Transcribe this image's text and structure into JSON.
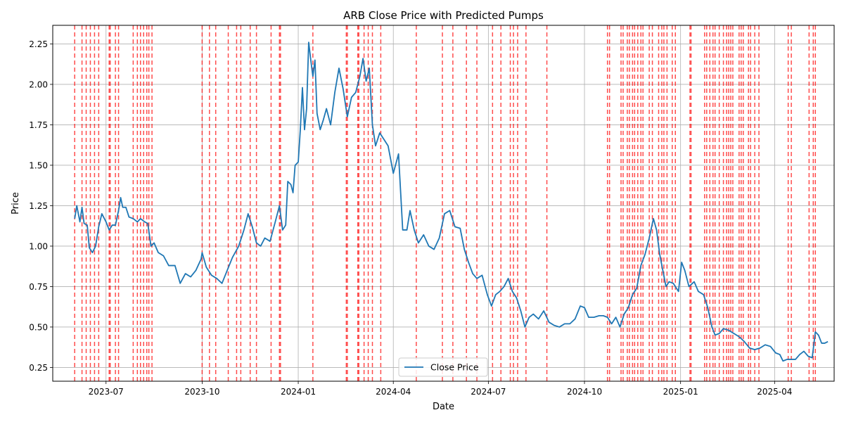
{
  "chart_data": {
    "type": "line",
    "title": "ARB Close Price with Predicted Pumps",
    "xlabel": "Date",
    "ylabel": "Price",
    "xlim": [
      "2023-05-11",
      "2025-05-28"
    ],
    "ylim": [
      0.165,
      2.365
    ],
    "grid": true,
    "legend": "lower center",
    "x_ticks": [
      {
        "date": "2023-07-01",
        "label": "2023-07"
      },
      {
        "date": "2023-10-01",
        "label": "2023-10"
      },
      {
        "date": "2024-01-01",
        "label": "2024-01"
      },
      {
        "date": "2024-04-01",
        "label": "2024-04"
      },
      {
        "date": "2024-07-01",
        "label": "2024-07"
      },
      {
        "date": "2024-10-01",
        "label": "2024-10"
      },
      {
        "date": "2025-01-01",
        "label": "2025-01"
      },
      {
        "date": "2025-04-01",
        "label": "2025-04"
      }
    ],
    "y_ticks": [
      {
        "value": 0.25,
        "label": "0.25"
      },
      {
        "value": 0.5,
        "label": "0.50"
      },
      {
        "value": 0.75,
        "label": "0.75"
      },
      {
        "value": 1.0,
        "label": "1.00"
      },
      {
        "value": 1.25,
        "label": "1.25"
      },
      {
        "value": 1.5,
        "label": "1.50"
      },
      {
        "value": 1.75,
        "label": "1.75"
      },
      {
        "value": 2.0,
        "label": "2.00"
      },
      {
        "value": 2.25,
        "label": "2.25"
      }
    ],
    "series": [
      {
        "name": "Close Price",
        "color": "#1f77b4",
        "points": [
          [
            "2023-06-01",
            1.17
          ],
          [
            "2023-06-03",
            1.25
          ],
          [
            "2023-06-06",
            1.15
          ],
          [
            "2023-06-08",
            1.24
          ],
          [
            "2023-06-10",
            1.14
          ],
          [
            "2023-06-13",
            1.13
          ],
          [
            "2023-06-15",
            0.99
          ],
          [
            "2023-06-18",
            0.96
          ],
          [
            "2023-06-21",
            1.0
          ],
          [
            "2023-06-24",
            1.12
          ],
          [
            "2023-06-27",
            1.2
          ],
          [
            "2023-07-01",
            1.15
          ],
          [
            "2023-07-04",
            1.1
          ],
          [
            "2023-07-07",
            1.13
          ],
          [
            "2023-07-10",
            1.13
          ],
          [
            "2023-07-13",
            1.22
          ],
          [
            "2023-07-15",
            1.3
          ],
          [
            "2023-07-17",
            1.24
          ],
          [
            "2023-07-20",
            1.24
          ],
          [
            "2023-07-23",
            1.18
          ],
          [
            "2023-07-27",
            1.17
          ],
          [
            "2023-07-31",
            1.15
          ],
          [
            "2023-08-03",
            1.17
          ],
          [
            "2023-08-07",
            1.15
          ],
          [
            "2023-08-10",
            1.14
          ],
          [
            "2023-08-13",
            1.0
          ],
          [
            "2023-08-16",
            1.02
          ],
          [
            "2023-08-20",
            0.96
          ],
          [
            "2023-08-25",
            0.94
          ],
          [
            "2023-08-30",
            0.88
          ],
          [
            "2023-09-05",
            0.88
          ],
          [
            "2023-09-10",
            0.77
          ],
          [
            "2023-09-15",
            0.83
          ],
          [
            "2023-09-20",
            0.81
          ],
          [
            "2023-09-25",
            0.85
          ],
          [
            "2023-09-30",
            0.92
          ],
          [
            "2023-10-01",
            0.96
          ],
          [
            "2023-10-05",
            0.87
          ],
          [
            "2023-10-10",
            0.82
          ],
          [
            "2023-10-15",
            0.8
          ],
          [
            "2023-10-20",
            0.77
          ],
          [
            "2023-10-25",
            0.85
          ],
          [
            "2023-10-30",
            0.93
          ],
          [
            "2023-11-05",
            1.0
          ],
          [
            "2023-11-10",
            1.1
          ],
          [
            "2023-11-14",
            1.2
          ],
          [
            "2023-11-18",
            1.12
          ],
          [
            "2023-11-22",
            1.02
          ],
          [
            "2023-11-26",
            1.0
          ],
          [
            "2023-11-30",
            1.05
          ],
          [
            "2023-12-05",
            1.03
          ],
          [
            "2023-12-10",
            1.15
          ],
          [
            "2023-12-14",
            1.25
          ],
          [
            "2023-12-17",
            1.1
          ],
          [
            "2023-12-20",
            1.13
          ],
          [
            "2023-12-22",
            1.4
          ],
          [
            "2023-12-25",
            1.38
          ],
          [
            "2023-12-27",
            1.33
          ],
          [
            "2023-12-29",
            1.5
          ],
          [
            "2024-01-01",
            1.52
          ],
          [
            "2024-01-03",
            1.72
          ],
          [
            "2024-01-05",
            1.98
          ],
          [
            "2024-01-07",
            1.72
          ],
          [
            "2024-01-09",
            1.85
          ],
          [
            "2024-01-11",
            2.26
          ],
          [
            "2024-01-13",
            2.15
          ],
          [
            "2024-01-15",
            2.05
          ],
          [
            "2024-01-17",
            2.15
          ],
          [
            "2024-01-19",
            1.82
          ],
          [
            "2024-01-22",
            1.72
          ],
          [
            "2024-01-25",
            1.78
          ],
          [
            "2024-01-28",
            1.85
          ],
          [
            "2024-02-01",
            1.75
          ],
          [
            "2024-02-05",
            1.95
          ],
          [
            "2024-02-09",
            2.1
          ],
          [
            "2024-02-13",
            1.97
          ],
          [
            "2024-02-17",
            1.8
          ],
          [
            "2024-02-21",
            1.92
          ],
          [
            "2024-02-25",
            1.95
          ],
          [
            "2024-02-29",
            2.05
          ],
          [
            "2024-03-03",
            2.16
          ],
          [
            "2024-03-06",
            2.02
          ],
          [
            "2024-03-09",
            2.1
          ],
          [
            "2024-03-12",
            1.75
          ],
          [
            "2024-03-15",
            1.62
          ],
          [
            "2024-03-19",
            1.7
          ],
          [
            "2024-03-23",
            1.66
          ],
          [
            "2024-03-27",
            1.62
          ],
          [
            "2024-04-01",
            1.45
          ],
          [
            "2024-04-06",
            1.57
          ],
          [
            "2024-04-10",
            1.1
          ],
          [
            "2024-04-14",
            1.1
          ],
          [
            "2024-04-17",
            1.22
          ],
          [
            "2024-04-21",
            1.1
          ],
          [
            "2024-04-25",
            1.02
          ],
          [
            "2024-04-30",
            1.07
          ],
          [
            "2024-05-05",
            1.0
          ],
          [
            "2024-05-10",
            0.98
          ],
          [
            "2024-05-15",
            1.05
          ],
          [
            "2024-05-20",
            1.2
          ],
          [
            "2024-05-25",
            1.22
          ],
          [
            "2024-05-30",
            1.12
          ],
          [
            "2024-06-04",
            1.11
          ],
          [
            "2024-06-08",
            0.98
          ],
          [
            "2024-06-12",
            0.9
          ],
          [
            "2024-06-16",
            0.83
          ],
          [
            "2024-06-20",
            0.8
          ],
          [
            "2024-06-25",
            0.82
          ],
          [
            "2024-06-30",
            0.7
          ],
          [
            "2024-07-04",
            0.63
          ],
          [
            "2024-07-08",
            0.7
          ],
          [
            "2024-07-12",
            0.72
          ],
          [
            "2024-07-16",
            0.75
          ],
          [
            "2024-07-20",
            0.8
          ],
          [
            "2024-07-24",
            0.72
          ],
          [
            "2024-07-28",
            0.68
          ],
          [
            "2024-08-01",
            0.6
          ],
          [
            "2024-08-05",
            0.5
          ],
          [
            "2024-08-09",
            0.56
          ],
          [
            "2024-08-13",
            0.58
          ],
          [
            "2024-08-18",
            0.55
          ],
          [
            "2024-08-23",
            0.6
          ],
          [
            "2024-08-28",
            0.53
          ],
          [
            "2024-09-02",
            0.51
          ],
          [
            "2024-09-07",
            0.5
          ],
          [
            "2024-09-12",
            0.52
          ],
          [
            "2024-09-17",
            0.52
          ],
          [
            "2024-09-22",
            0.55
          ],
          [
            "2024-09-27",
            0.63
          ],
          [
            "2024-10-01",
            0.62
          ],
          [
            "2024-10-05",
            0.56
          ],
          [
            "2024-10-10",
            0.56
          ],
          [
            "2024-10-15",
            0.57
          ],
          [
            "2024-10-19",
            0.57
          ],
          [
            "2024-10-23",
            0.56
          ],
          [
            "2024-10-27",
            0.52
          ],
          [
            "2024-10-31",
            0.56
          ],
          [
            "2024-11-04",
            0.5
          ],
          [
            "2024-11-08",
            0.58
          ],
          [
            "2024-11-12",
            0.62
          ],
          [
            "2024-11-16",
            0.7
          ],
          [
            "2024-11-20",
            0.74
          ],
          [
            "2024-11-24",
            0.88
          ],
          [
            "2024-11-28",
            0.95
          ],
          [
            "2024-12-02",
            1.05
          ],
          [
            "2024-12-06",
            1.17
          ],
          [
            "2024-12-09",
            1.1
          ],
          [
            "2024-12-12",
            0.95
          ],
          [
            "2024-12-15",
            0.85
          ],
          [
            "2024-12-18",
            0.75
          ],
          [
            "2024-12-21",
            0.78
          ],
          [
            "2024-12-25",
            0.77
          ],
          [
            "2024-12-30",
            0.72
          ],
          [
            "2025-01-02",
            0.9
          ],
          [
            "2025-01-05",
            0.85
          ],
          [
            "2025-01-09",
            0.75
          ],
          [
            "2025-01-14",
            0.78
          ],
          [
            "2025-01-18",
            0.72
          ],
          [
            "2025-01-23",
            0.7
          ],
          [
            "2025-01-27",
            0.62
          ],
          [
            "2025-01-31",
            0.5
          ],
          [
            "2025-02-03",
            0.45
          ],
          [
            "2025-02-07",
            0.46
          ],
          [
            "2025-02-11",
            0.49
          ],
          [
            "2025-02-16",
            0.48
          ],
          [
            "2025-02-21",
            0.46
          ],
          [
            "2025-02-26",
            0.44
          ],
          [
            "2025-03-03",
            0.41
          ],
          [
            "2025-03-08",
            0.37
          ],
          [
            "2025-03-13",
            0.36
          ],
          [
            "2025-03-18",
            0.37
          ],
          [
            "2025-03-23",
            0.39
          ],
          [
            "2025-03-28",
            0.38
          ],
          [
            "2025-04-02",
            0.34
          ],
          [
            "2025-04-06",
            0.33
          ],
          [
            "2025-04-09",
            0.29
          ],
          [
            "2025-04-13",
            0.3
          ],
          [
            "2025-04-17",
            0.3
          ],
          [
            "2025-04-21",
            0.3
          ],
          [
            "2025-04-25",
            0.33
          ],
          [
            "2025-04-29",
            0.35
          ],
          [
            "2025-05-03",
            0.32
          ],
          [
            "2025-05-07",
            0.31
          ],
          [
            "2025-05-10",
            0.47
          ],
          [
            "2025-05-13",
            0.45
          ],
          [
            "2025-05-16",
            0.4
          ],
          [
            "2025-05-19",
            0.4
          ],
          [
            "2025-05-22",
            0.41
          ]
        ]
      }
    ],
    "pump_markers": {
      "color": "#ff0000",
      "style": "dashed",
      "dates": [
        "2023-06-01",
        "2023-06-08",
        "2023-06-12",
        "2023-06-16",
        "2023-06-20",
        "2023-06-24",
        "2023-07-04",
        "2023-07-05",
        "2023-07-10",
        "2023-07-13",
        "2023-07-27",
        "2023-07-31",
        "2023-08-03",
        "2023-08-06",
        "2023-08-09",
        "2023-08-11",
        "2023-08-14",
        "2023-10-01",
        "2023-10-08",
        "2023-10-14",
        "2023-10-26",
        "2023-11-03",
        "2023-11-07",
        "2023-11-16",
        "2023-11-22",
        "2023-12-06",
        "2023-12-14",
        "2023-12-15",
        "2024-01-15",
        "2024-02-16",
        "2024-02-17",
        "2024-02-27",
        "2024-02-28",
        "2024-03-04",
        "2024-03-08",
        "2024-03-12",
        "2024-03-20",
        "2024-04-23",
        "2024-05-18",
        "2024-05-28",
        "2024-06-10",
        "2024-06-20",
        "2024-07-05",
        "2024-07-13",
        "2024-07-22",
        "2024-07-25",
        "2024-07-29",
        "2024-08-06",
        "2024-08-26",
        "2024-10-23",
        "2024-10-25",
        "2024-11-05",
        "2024-11-07",
        "2024-11-11",
        "2024-11-13",
        "2024-11-16",
        "2024-11-18",
        "2024-11-21",
        "2024-11-24",
        "2024-11-26",
        "2024-12-02",
        "2024-12-05",
        "2024-12-11",
        "2024-12-14",
        "2024-12-16",
        "2024-12-19",
        "2024-12-24",
        "2024-12-27",
        "2025-01-10",
        "2025-01-11",
        "2025-01-24",
        "2025-01-26",
        "2025-01-29",
        "2025-02-01",
        "2025-02-03",
        "2025-02-07",
        "2025-02-11",
        "2025-02-14",
        "2025-02-16",
        "2025-02-18",
        "2025-02-20",
        "2025-02-26",
        "2025-02-28",
        "2025-03-02",
        "2025-03-07",
        "2025-03-09",
        "2025-03-13",
        "2025-03-17",
        "2025-04-14",
        "2025-04-17",
        "2025-05-04",
        "2025-05-08",
        "2025-05-10"
      ]
    }
  }
}
